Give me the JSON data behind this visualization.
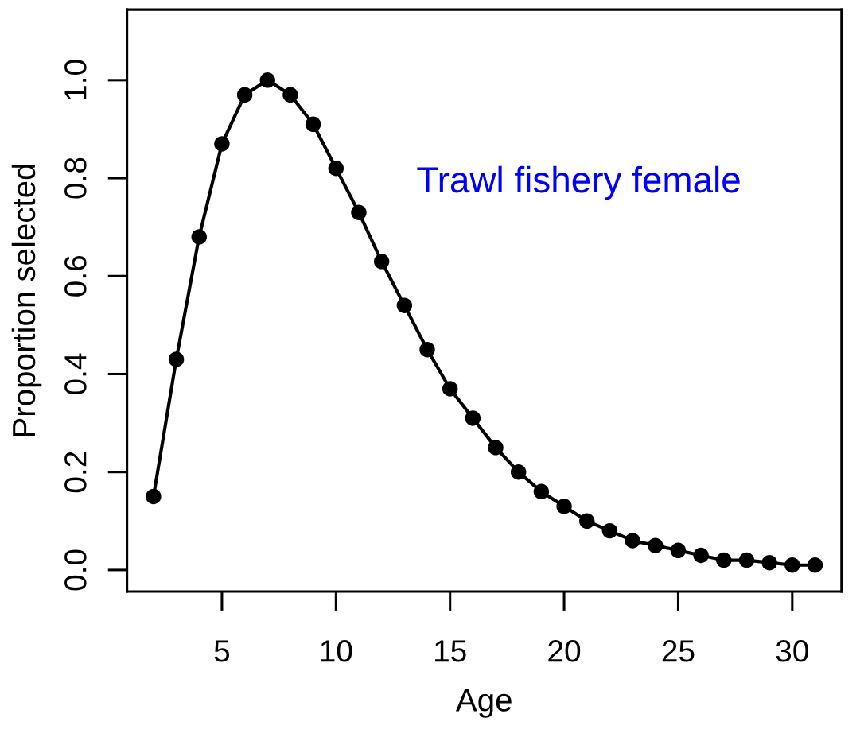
{
  "chart_data": {
    "type": "line",
    "xlabel": "Age",
    "ylabel": "Proportion selected",
    "annotations": [
      "Trawl fishery female"
    ],
    "x": [
      2,
      3,
      4,
      5,
      6,
      7,
      8,
      9,
      10,
      11,
      12,
      13,
      14,
      15,
      16,
      17,
      18,
      19,
      20,
      21,
      22,
      23,
      24,
      25,
      26,
      27,
      28,
      29,
      30,
      31
    ],
    "series": [
      {
        "color": "#000000",
        "values": [
          0.15,
          0.43,
          0.68,
          0.87,
          0.97,
          1.0,
          0.97,
          0.91,
          0.82,
          0.73,
          0.63,
          0.54,
          0.45,
          0.37,
          0.31,
          0.25,
          0.2,
          0.16,
          0.13,
          0.1,
          0.08,
          0.06,
          0.05,
          0.04,
          0.03,
          0.02,
          0.02,
          0.015,
          0.01,
          0.01
        ]
      }
    ],
    "xlim": [
      0.84,
      32.16
    ],
    "ylim": [
      -0.044,
      1.144
    ],
    "xticks": [
      5,
      10,
      15,
      20,
      25,
      30
    ],
    "yticks": [
      {
        "value": 0,
        "label": "0.0"
      },
      0.2,
      0.4,
      0.6,
      0.8,
      {
        "value": 1,
        "label": "1.0"
      }
    ],
    "marker": "circle",
    "line_style": "solid",
    "grid": false
  }
}
